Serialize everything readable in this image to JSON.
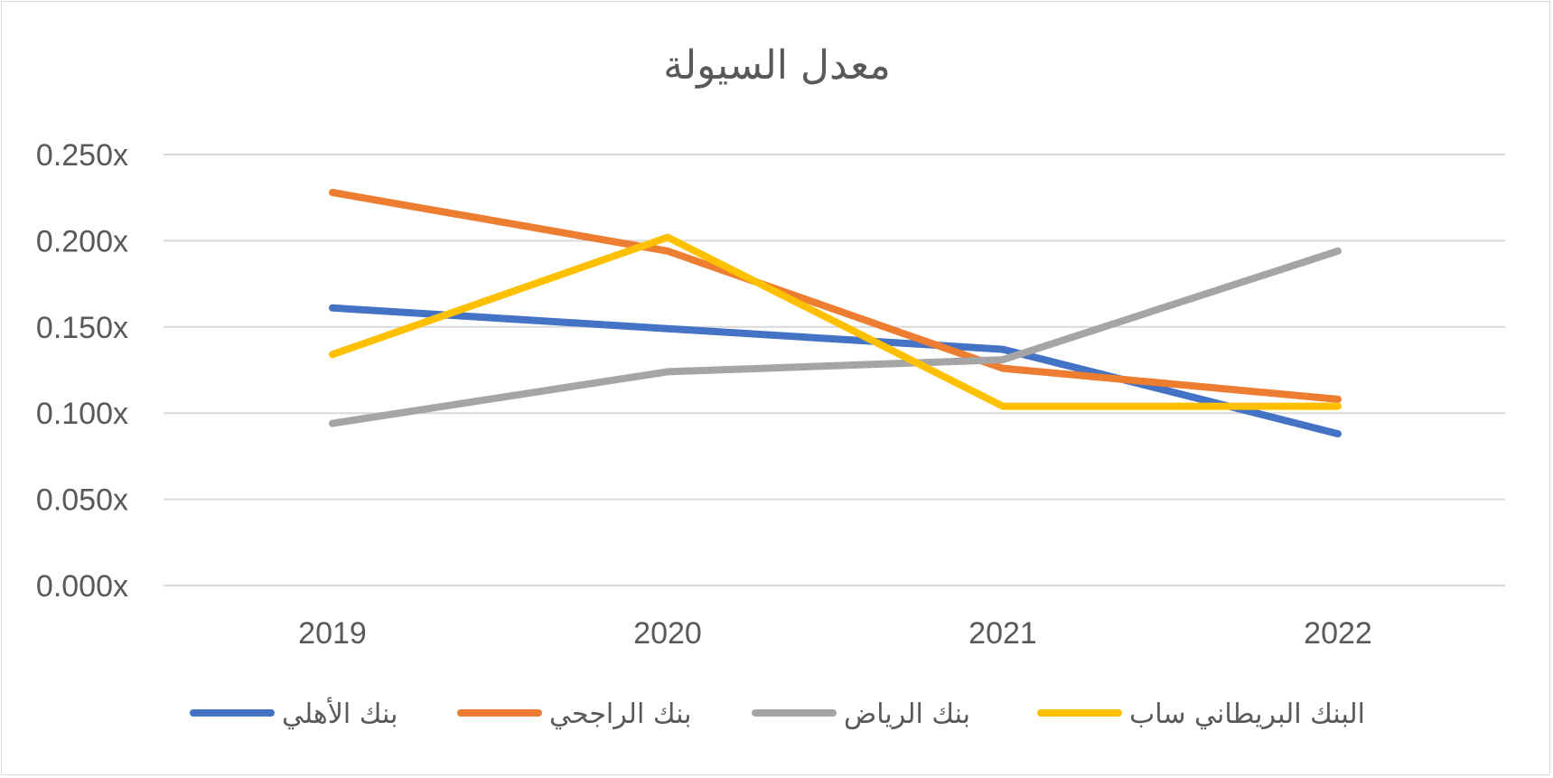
{
  "chart_data": {
    "type": "line",
    "title": "معدل السيولة",
    "categories": [
      "2019",
      "2020",
      "2021",
      "2022"
    ],
    "y_ticks": [
      "0.000x",
      "0.050x",
      "0.100x",
      "0.150x",
      "0.200x",
      "0.250x"
    ],
    "ylim": [
      0,
      0.25
    ],
    "grid": true,
    "legend_position": "bottom",
    "series": [
      {
        "name": "بنك الأهلي",
        "color": "#4472c4",
        "values": [
          0.161,
          0.149,
          0.137,
          0.088
        ]
      },
      {
        "name": "بنك الراجحي",
        "color": "#ed7d31",
        "values": [
          0.228,
          0.194,
          0.126,
          0.108
        ]
      },
      {
        "name": "بنك الرياض",
        "color": "#a5a5a5",
        "values": [
          0.094,
          0.124,
          0.131,
          0.194
        ]
      },
      {
        "name": "البنك البريطاني ساب",
        "color": "#ffc000",
        "values": [
          0.134,
          0.202,
          0.104,
          0.104
        ]
      }
    ]
  }
}
